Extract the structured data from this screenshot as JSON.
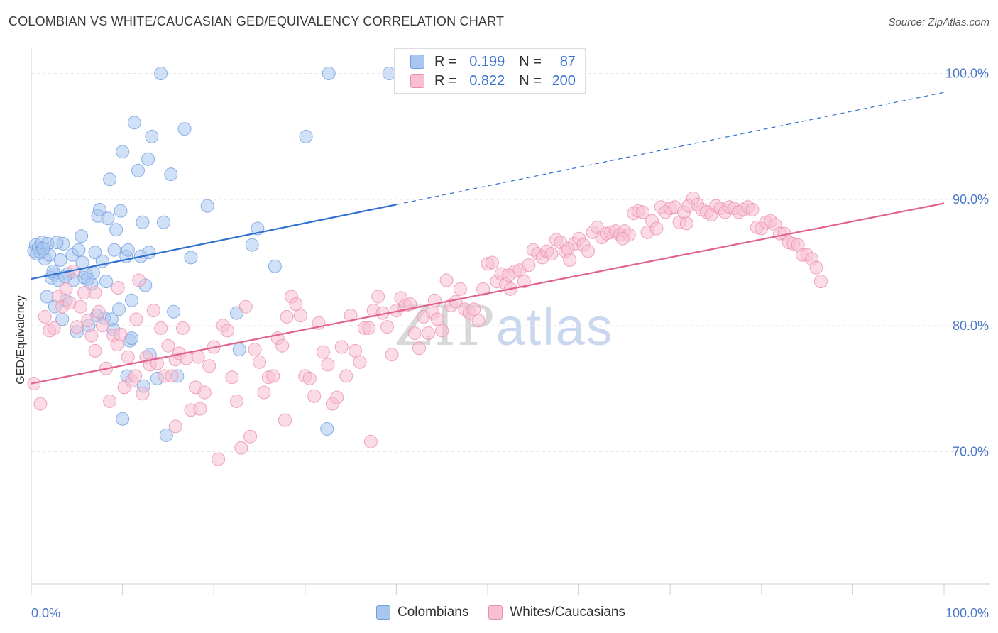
{
  "title": "COLOMBIAN VS WHITE/CAUCASIAN GED/EQUIVALENCY CORRELATION CHART",
  "source": "Source: ZipAtlas.com",
  "watermark": {
    "zip": "ZIP",
    "atlas": "atlas"
  },
  "legend": {
    "r_label": "R =",
    "n_label": "N =",
    "rows": [
      {
        "r": "0.199",
        "n": "87",
        "color": "#a9c6ee",
        "border": "#6e9de0"
      },
      {
        "r": "0.822",
        "n": "200",
        "color": "#f7bfd1",
        "border": "#eb8fb0"
      }
    ]
  },
  "bottom_legend": [
    {
      "label": "Colombians",
      "color": "#a9c6ee",
      "border": "#6e9de0"
    },
    {
      "label": "Whites/Caucasians",
      "color": "#f7bfd1",
      "border": "#eb8fb0"
    }
  ],
  "chart_data": {
    "type": "scatter",
    "title": "COLOMBIAN VS WHITE/CAUCASIAN GED/EQUIVALENCY CORRELATION CHART",
    "xlabel": "",
    "ylabel": "GED/Equivalency",
    "x_tick_labels": [
      "0.0%",
      "100.0%"
    ],
    "y_tick_labels": [
      "100.0%",
      "90.0%",
      "80.0%",
      "70.0%"
    ],
    "y_ticks": [
      100,
      90,
      80,
      70
    ],
    "xlim": [
      0,
      100
    ],
    "ylim": [
      59.5,
      102
    ],
    "grid": true,
    "legend_position": "top-center",
    "series": [
      {
        "name": "Colombians",
        "color": "#6e9de0",
        "fill": "#a9c6ee",
        "R": 0.199,
        "N": 87,
        "trend": {
          "x0": 0,
          "y0": 83.7,
          "x1": 40,
          "y1": 89.6,
          "dashed_to_x": 100,
          "dashed_to_y": 98.5,
          "color": "#2e6fd0"
        },
        "points": [
          [
            0.3,
            85.9
          ],
          [
            0.5,
            86.4
          ],
          [
            0.8,
            86.2
          ],
          [
            1,
            85.8
          ],
          [
            1.2,
            86.6
          ],
          [
            1.5,
            85.3
          ],
          [
            1.8,
            86.5
          ],
          [
            2,
            85.6
          ],
          [
            2.2,
            83.8
          ],
          [
            2.5,
            84.1
          ],
          [
            2.6,
            81.5
          ],
          [
            3,
            83.6
          ],
          [
            3.2,
            85.2
          ],
          [
            3.5,
            86.5
          ],
          [
            3.8,
            82.0
          ],
          [
            4,
            84.1
          ],
          [
            4.5,
            85.6
          ],
          [
            5,
            79.5
          ],
          [
            5.2,
            86.0
          ],
          [
            5.5,
            87.1
          ],
          [
            5.8,
            83.8
          ],
          [
            6,
            84.1
          ],
          [
            6.3,
            80.0
          ],
          [
            6.6,
            83.3
          ],
          [
            7,
            85.8
          ],
          [
            7.3,
            88.7
          ],
          [
            7.5,
            89.2
          ],
          [
            7.8,
            85.1
          ],
          [
            8,
            80.6
          ],
          [
            8.2,
            83.5
          ],
          [
            8.4,
            88.5
          ],
          [
            8.6,
            91.6
          ],
          [
            9,
            79.7
          ],
          [
            9.3,
            87.6
          ],
          [
            9.6,
            81.3
          ],
          [
            9.8,
            89.1
          ],
          [
            10,
            93.8
          ],
          [
            10.4,
            85.5
          ],
          [
            10.6,
            86.0
          ],
          [
            10.8,
            78.8
          ],
          [
            11,
            82.0
          ],
          [
            11.3,
            96.1
          ],
          [
            11.7,
            92.3
          ],
          [
            12,
            85.5
          ],
          [
            12.2,
            88.2
          ],
          [
            12.5,
            83.2
          ],
          [
            12.8,
            93.2
          ],
          [
            13.2,
            95.0
          ],
          [
            13.8,
            75.8
          ],
          [
            14.2,
            100.0
          ],
          [
            14.5,
            88.2
          ],
          [
            14.8,
            71.3
          ],
          [
            15.3,
            92.0
          ],
          [
            16,
            76.0
          ],
          [
            16.8,
            95.6
          ],
          [
            17.5,
            85.4
          ],
          [
            19.3,
            89.5
          ],
          [
            22.5,
            81.0
          ],
          [
            22.8,
            78.1
          ],
          [
            24.2,
            86.4
          ],
          [
            24.8,
            87.7
          ],
          [
            26.7,
            84.7
          ],
          [
            30.1,
            95.0
          ],
          [
            32.4,
            71.8
          ],
          [
            32.6,
            100.0
          ],
          [
            39.2,
            100.0
          ],
          [
            10,
            72.6
          ],
          [
            10.5,
            76.0
          ],
          [
            12.3,
            75.2
          ],
          [
            13.0,
            77.7
          ],
          [
            11.0,
            79.0
          ],
          [
            7.2,
            80.8
          ],
          [
            6.8,
            84.2
          ],
          [
            4.6,
            83.6
          ],
          [
            3.4,
            80.5
          ],
          [
            2.8,
            86.6
          ],
          [
            1.7,
            82.3
          ],
          [
            0.6,
            85.7
          ],
          [
            1.3,
            86.1
          ],
          [
            2.4,
            84.3
          ],
          [
            3.7,
            83.9
          ],
          [
            5.6,
            85.0
          ],
          [
            6.2,
            83.7
          ],
          [
            8.8,
            80.5
          ],
          [
            15.6,
            81.1
          ],
          [
            9.1,
            86.0
          ],
          [
            12.9,
            85.8
          ]
        ]
      },
      {
        "name": "Whites/Caucasians",
        "color": "#eb8fb0",
        "fill": "#f7bfd1",
        "R": 0.822,
        "N": 200,
        "trend": {
          "x0": 0,
          "y0": 75.4,
          "x1": 100,
          "y1": 89.7,
          "color": "#e0628d"
        },
        "points": [
          [
            0.3,
            75.4
          ],
          [
            1,
            73.8
          ],
          [
            1.5,
            80.7
          ],
          [
            2,
            79.6
          ],
          [
            2.5,
            79.8
          ],
          [
            3,
            82.3
          ],
          [
            3.4,
            81.5
          ],
          [
            3.8,
            82.9
          ],
          [
            4.2,
            81.8
          ],
          [
            4.6,
            84.3
          ],
          [
            5,
            79.9
          ],
          [
            5.4,
            81.5
          ],
          [
            5.8,
            82.6
          ],
          [
            6.2,
            80.4
          ],
          [
            6.6,
            79.2
          ],
          [
            7,
            82.6
          ],
          [
            7.4,
            81.1
          ],
          [
            7.8,
            80.0
          ],
          [
            8.2,
            76.6
          ],
          [
            8.6,
            74.0
          ],
          [
            9,
            79.2
          ],
          [
            9.4,
            78.5
          ],
          [
            9.8,
            79.3
          ],
          [
            10.2,
            75.1
          ],
          [
            10.6,
            77.5
          ],
          [
            11,
            75.6
          ],
          [
            11.4,
            76.0
          ],
          [
            11.8,
            83.6
          ],
          [
            12.2,
            74.6
          ],
          [
            12.6,
            77.5
          ],
          [
            13,
            76.9
          ],
          [
            13.4,
            81.2
          ],
          [
            13.8,
            77.0
          ],
          [
            14.2,
            79.8
          ],
          [
            14.6,
            76.0
          ],
          [
            15,
            78.4
          ],
          [
            15.4,
            76.0
          ],
          [
            15.8,
            77.3
          ],
          [
            16.2,
            77.8
          ],
          [
            16.6,
            79.8
          ],
          [
            17,
            77.4
          ],
          [
            17.5,
            73.3
          ],
          [
            18,
            75.1
          ],
          [
            18.5,
            73.4
          ],
          [
            19,
            74.7
          ],
          [
            19.5,
            76.8
          ],
          [
            20,
            78.3
          ],
          [
            20.5,
            69.4
          ],
          [
            21,
            80.0
          ],
          [
            21.5,
            79.6
          ],
          [
            22,
            75.9
          ],
          [
            22.5,
            74.0
          ],
          [
            23,
            70.3
          ],
          [
            23.5,
            81.5
          ],
          [
            24,
            71.2
          ],
          [
            24.5,
            78.1
          ],
          [
            25,
            77.1
          ],
          [
            25.5,
            74.7
          ],
          [
            26,
            75.9
          ],
          [
            26.5,
            76.0
          ],
          [
            27,
            79.0
          ],
          [
            27.5,
            78.4
          ],
          [
            28,
            80.7
          ],
          [
            28.5,
            82.3
          ],
          [
            29,
            81.7
          ],
          [
            29.5,
            80.8
          ],
          [
            30,
            76.0
          ],
          [
            30.5,
            75.8
          ],
          [
            31,
            74.4
          ],
          [
            31.5,
            80.2
          ],
          [
            32,
            77.9
          ],
          [
            32.5,
            76.9
          ],
          [
            33,
            73.8
          ],
          [
            33.5,
            74.3
          ],
          [
            34,
            78.3
          ],
          [
            34.5,
            76.0
          ],
          [
            35,
            80.8
          ],
          [
            35.5,
            78.0
          ],
          [
            36,
            77.1
          ],
          [
            36.5,
            79.8
          ],
          [
            37,
            79.8
          ],
          [
            37.5,
            81.2
          ],
          [
            38,
            82.3
          ],
          [
            38.5,
            81.0
          ],
          [
            39,
            79.9
          ],
          [
            39.5,
            77.7
          ],
          [
            40,
            81.2
          ],
          [
            40.5,
            82.2
          ],
          [
            41,
            81.6
          ],
          [
            41.5,
            81.7
          ],
          [
            42,
            79.4
          ],
          [
            42.5,
            78.2
          ],
          [
            43,
            80.7
          ],
          [
            43.5,
            79.4
          ],
          [
            44,
            81.0
          ],
          [
            44.5,
            80.5
          ],
          [
            45,
            79.6
          ],
          [
            45.5,
            83.6
          ],
          [
            46,
            81.6
          ],
          [
            46.5,
            81.9
          ],
          [
            47,
            82.9
          ],
          [
            47.5,
            81.3
          ],
          [
            48,
            81.0
          ],
          [
            48.5,
            81.3
          ],
          [
            49,
            80.4
          ],
          [
            49.5,
            82.9
          ],
          [
            50,
            84.9
          ],
          [
            50.5,
            85.0
          ],
          [
            51,
            83.5
          ],
          [
            51.5,
            84.1
          ],
          [
            52,
            83.3
          ],
          [
            52.5,
            82.9
          ],
          [
            53,
            84.3
          ],
          [
            53.5,
            84.4
          ],
          [
            54,
            83.5
          ],
          [
            54.5,
            84.8
          ],
          [
            55,
            86.0
          ],
          [
            55.5,
            85.7
          ],
          [
            56,
            85.4
          ],
          [
            56.5,
            85.9
          ],
          [
            57,
            85.7
          ],
          [
            57.5,
            86.8
          ],
          [
            58,
            86.6
          ],
          [
            58.5,
            85.9
          ],
          [
            59,
            85.2
          ],
          [
            59.5,
            86.5
          ],
          [
            60,
            86.9
          ],
          [
            60.5,
            86.4
          ],
          [
            61,
            85.9
          ],
          [
            61.5,
            87.4
          ],
          [
            62,
            87.8
          ],
          [
            62.5,
            87.0
          ],
          [
            63,
            87.3
          ],
          [
            63.5,
            87.4
          ],
          [
            64,
            87.5
          ],
          [
            64.5,
            87.2
          ],
          [
            65,
            87.5
          ],
          [
            65.5,
            87.2
          ],
          [
            66,
            88.9
          ],
          [
            66.5,
            89.1
          ],
          [
            67,
            89.0
          ],
          [
            67.5,
            87.4
          ],
          [
            68,
            88.3
          ],
          [
            68.5,
            87.7
          ],
          [
            69,
            89.4
          ],
          [
            69.5,
            89.0
          ],
          [
            70,
            89.3
          ],
          [
            70.5,
            89.4
          ],
          [
            71,
            88.2
          ],
          [
            71.5,
            89.0
          ],
          [
            72,
            89.5
          ],
          [
            72.5,
            90.1
          ],
          [
            73,
            89.6
          ],
          [
            73.5,
            89.2
          ],
          [
            74,
            89.0
          ],
          [
            74.5,
            88.8
          ],
          [
            75,
            89.5
          ],
          [
            75.5,
            89.3
          ],
          [
            76,
            89.0
          ],
          [
            76.5,
            89.4
          ],
          [
            77,
            89.3
          ],
          [
            77.5,
            89.0
          ],
          [
            78,
            89.2
          ],
          [
            78.5,
            89.4
          ],
          [
            79,
            89.2
          ],
          [
            79.5,
            87.8
          ],
          [
            80,
            87.7
          ],
          [
            80.5,
            88.2
          ],
          [
            81,
            88.3
          ],
          [
            81.5,
            88.0
          ],
          [
            82,
            87.3
          ],
          [
            82.5,
            87.3
          ],
          [
            83,
            86.6
          ],
          [
            83.5,
            86.5
          ],
          [
            84,
            86.4
          ],
          [
            84.5,
            85.6
          ],
          [
            85,
            85.6
          ],
          [
            85.5,
            85.3
          ],
          [
            86,
            84.6
          ],
          [
            86.5,
            83.5
          ],
          [
            11.5,
            80.5
          ],
          [
            15.8,
            72.0
          ],
          [
            7.0,
            78.0
          ],
          [
            9.5,
            83.0
          ],
          [
            18.3,
            77.5
          ],
          [
            27.8,
            72.5
          ],
          [
            37.2,
            70.8
          ],
          [
            44.2,
            82.0
          ],
          [
            52.3,
            84.0
          ],
          [
            58.8,
            86.1
          ],
          [
            64.8,
            86.9
          ],
          [
            71.8,
            88.1
          ]
        ]
      }
    ]
  }
}
